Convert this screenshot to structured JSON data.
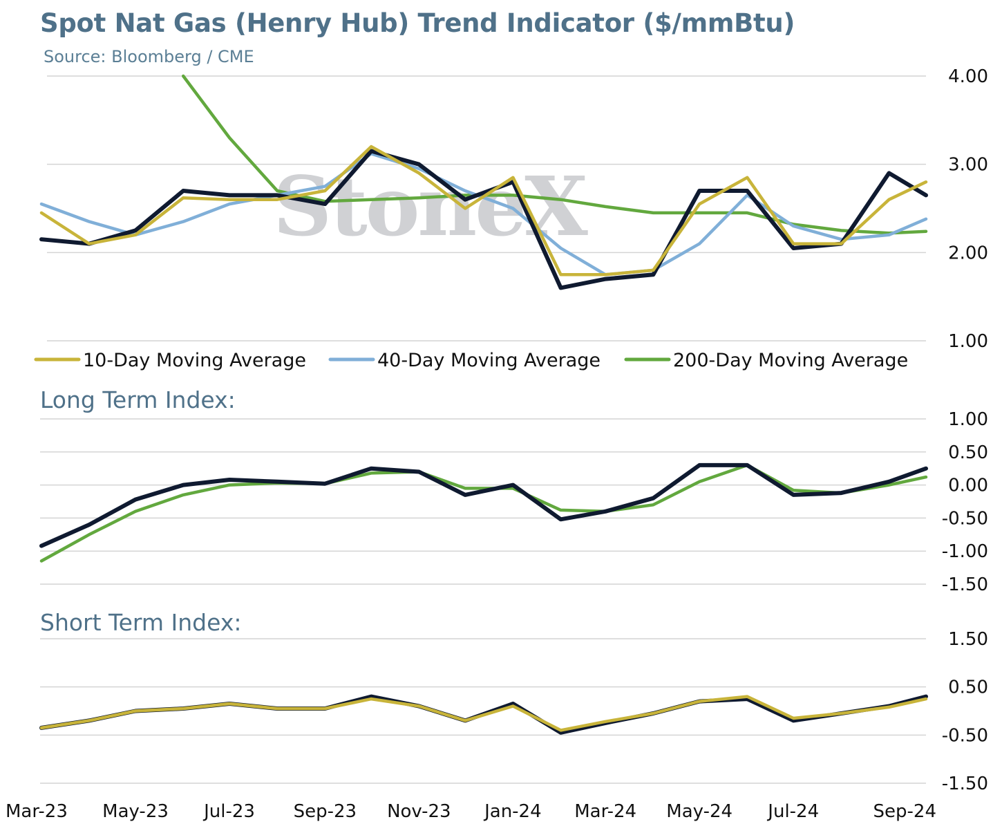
{
  "title": "Spot Nat Gas (Henry Hub) Trend Indicator ($/mmBtu)",
  "source": "Source: Bloomberg / CME",
  "watermark": "StoneX",
  "x_ticks": [
    "Mar-23",
    "May-23",
    "Jul-23",
    "Sep-23",
    "Nov-23",
    "Jan-24",
    "Mar-24",
    "May-24",
    "Jul-24",
    "Sep-24"
  ],
  "colors": {
    "spot": "#0f1a30",
    "ma10": "#c8b43a",
    "ma40": "#80afd8",
    "ma200": "#62a83e",
    "grid": "#d4d4d4",
    "title": "#4f7189"
  },
  "chart_data": [
    {
      "id": "price",
      "type": "line",
      "ylim": [
        1.0,
        4.0
      ],
      "y_ticks": [
        "1.00",
        "2.00",
        "3.00",
        "4.00"
      ],
      "legend": [
        "10-Day Moving Average",
        "40-Day Moving Average",
        "200-Day Moving Average"
      ],
      "legend_position": "bottom",
      "x": [
        "2023-03-01",
        "2023-04-01",
        "2023-05-01",
        "2023-06-01",
        "2023-07-01",
        "2023-08-01",
        "2023-09-01",
        "2023-10-01",
        "2023-11-01",
        "2023-12-01",
        "2024-01-01",
        "2024-02-01",
        "2024-03-01",
        "2024-04-01",
        "2024-05-01",
        "2024-06-01",
        "2024-07-01",
        "2024-08-01",
        "2024-09-01",
        "2024-09-25"
      ],
      "series": [
        {
          "key": "spot",
          "values": [
            2.15,
            2.1,
            2.25,
            2.7,
            2.65,
            2.65,
            2.55,
            3.15,
            3.0,
            2.6,
            2.8,
            1.6,
            1.7,
            1.75,
            2.7,
            2.7,
            2.05,
            2.1,
            2.9,
            2.65
          ]
        },
        {
          "key": "ma10",
          "name": "10-Day Moving Average",
          "values": [
            2.45,
            2.1,
            2.2,
            2.62,
            2.6,
            2.6,
            2.7,
            3.2,
            2.9,
            2.5,
            2.85,
            1.75,
            1.75,
            1.8,
            2.55,
            2.85,
            2.1,
            2.1,
            2.6,
            2.8
          ]
        },
        {
          "key": "ma40",
          "name": "40-Day Moving Average",
          "values": [
            2.55,
            2.35,
            2.2,
            2.35,
            2.55,
            2.65,
            2.75,
            3.12,
            2.95,
            2.7,
            2.5,
            2.05,
            1.75,
            1.8,
            2.1,
            2.65,
            2.3,
            2.15,
            2.2,
            2.38
          ]
        },
        {
          "key": "ma200",
          "name": "200-Day Moving Average",
          "values": [
            null,
            null,
            null,
            4.0,
            3.3,
            2.7,
            2.58,
            2.6,
            2.62,
            2.65,
            2.65,
            2.6,
            2.52,
            2.45,
            2.45,
            2.45,
            2.32,
            2.25,
            2.22,
            2.24
          ]
        }
      ]
    },
    {
      "id": "long_term",
      "type": "line",
      "title": "Long Term Index:",
      "ylim": [
        -1.5,
        1.0
      ],
      "y_ticks": [
        "1.00",
        "0.50",
        "0.00",
        "-0.50",
        "-1.00",
        "-1.50"
      ],
      "x": [
        "2023-03-01",
        "2023-04-01",
        "2023-05-01",
        "2023-06-01",
        "2023-07-01",
        "2023-08-01",
        "2023-09-01",
        "2023-10-01",
        "2023-11-01",
        "2023-12-01",
        "2024-01-01",
        "2024-02-01",
        "2024-03-01",
        "2024-04-01",
        "2024-05-01",
        "2024-06-01",
        "2024-07-01",
        "2024-08-01",
        "2024-09-01",
        "2024-09-25"
      ],
      "series": [
        {
          "key": "spot",
          "values": [
            -0.92,
            -0.6,
            -0.22,
            0.0,
            0.08,
            0.05,
            0.02,
            0.25,
            0.2,
            -0.15,
            0.0,
            -0.52,
            -0.4,
            -0.2,
            0.3,
            0.3,
            -0.15,
            -0.12,
            0.05,
            0.25
          ]
        },
        {
          "key": "ma200",
          "values": [
            -1.15,
            -0.75,
            -0.4,
            -0.15,
            0.0,
            0.03,
            0.02,
            0.18,
            0.2,
            -0.05,
            -0.05,
            -0.38,
            -0.4,
            -0.3,
            0.05,
            0.3,
            -0.08,
            -0.12,
            0.0,
            0.12
          ]
        }
      ]
    },
    {
      "id": "short_term",
      "type": "line",
      "title": "Short Term Index:",
      "ylim": [
        -1.5,
        1.5
      ],
      "y_ticks": [
        "1.50",
        "0.50",
        "-0.50",
        "-1.50"
      ],
      "x": [
        "2023-03-01",
        "2023-04-01",
        "2023-05-01",
        "2023-06-01",
        "2023-07-01",
        "2023-08-01",
        "2023-09-01",
        "2023-10-01",
        "2023-11-01",
        "2023-12-01",
        "2024-01-01",
        "2024-02-01",
        "2024-03-01",
        "2024-04-01",
        "2024-05-01",
        "2024-06-01",
        "2024-07-01",
        "2024-08-01",
        "2024-09-01",
        "2024-09-25"
      ],
      "series": [
        {
          "key": "spot",
          "values": [
            -0.35,
            -0.2,
            0.0,
            0.05,
            0.15,
            0.05,
            0.05,
            0.3,
            0.1,
            -0.2,
            0.15,
            -0.45,
            -0.25,
            -0.05,
            0.2,
            0.25,
            -0.2,
            -0.05,
            0.1,
            0.3
          ]
        },
        {
          "key": "ma10",
          "values": [
            -0.35,
            -0.2,
            0.0,
            0.05,
            0.15,
            0.05,
            0.05,
            0.25,
            0.1,
            -0.2,
            0.1,
            -0.4,
            -0.22,
            -0.05,
            0.2,
            0.3,
            -0.15,
            -0.05,
            0.08,
            0.25
          ]
        }
      ]
    }
  ]
}
